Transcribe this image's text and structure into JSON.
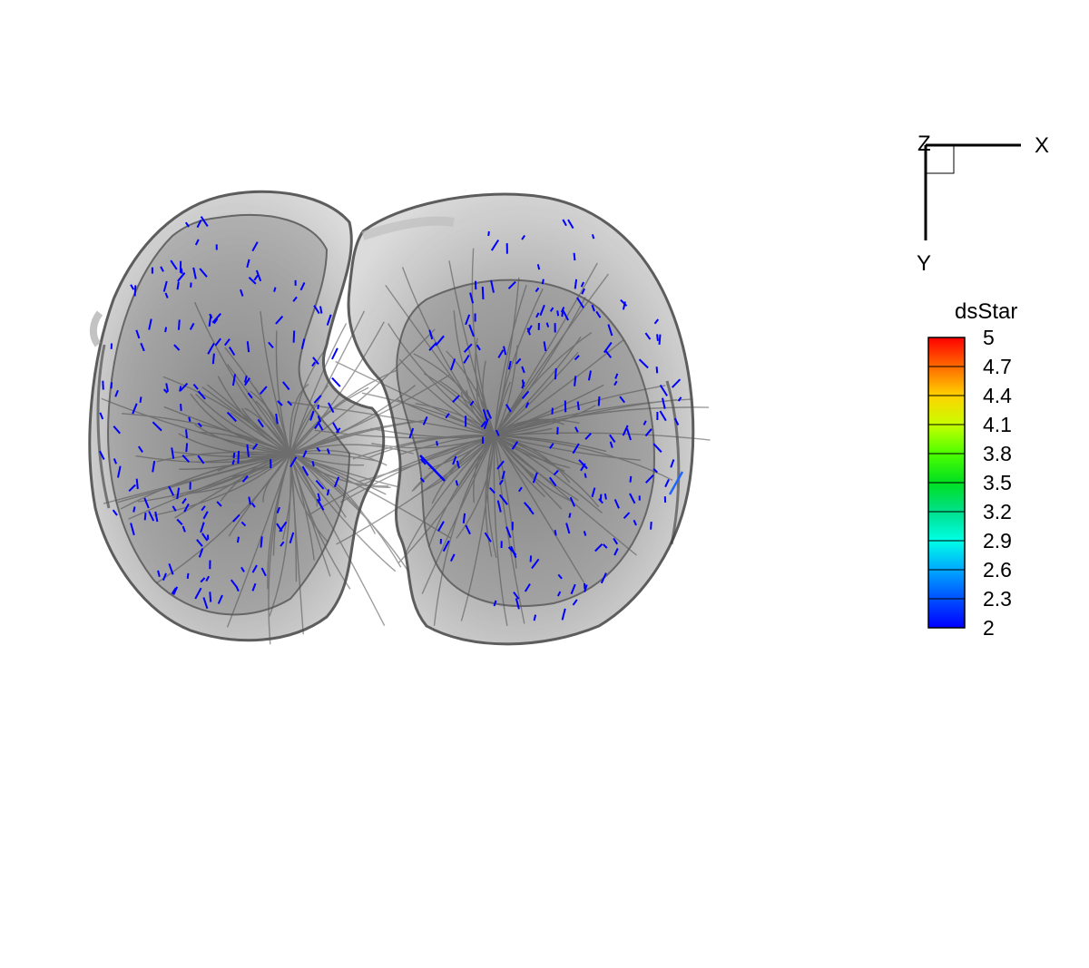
{
  "axes_triad": {
    "labels": {
      "z": "Z",
      "x": "X",
      "y": "Y"
    }
  },
  "legend": {
    "title": "dsStar",
    "ticks": [
      "5",
      "4.7",
      "4.4",
      "4.1",
      "3.8",
      "3.5",
      "3.2",
      "2.9",
      "2.6",
      "2.3",
      "2"
    ],
    "colors": [
      "#ff0000",
      "#ff6a00",
      "#ffd200",
      "#c8ff00",
      "#4cff00",
      "#00e020",
      "#00e08c",
      "#00ffe6",
      "#00a8ff",
      "#0050ff",
      "#0000ff"
    ]
  },
  "scene": {
    "description_colors": {
      "lung_fill": "#8a8a8a",
      "lung_outline": "#555555",
      "vector": "#0000ff",
      "highlight_vector": "#1e64ff"
    },
    "vector_field_value_range": [
      2,
      5
    ]
  }
}
